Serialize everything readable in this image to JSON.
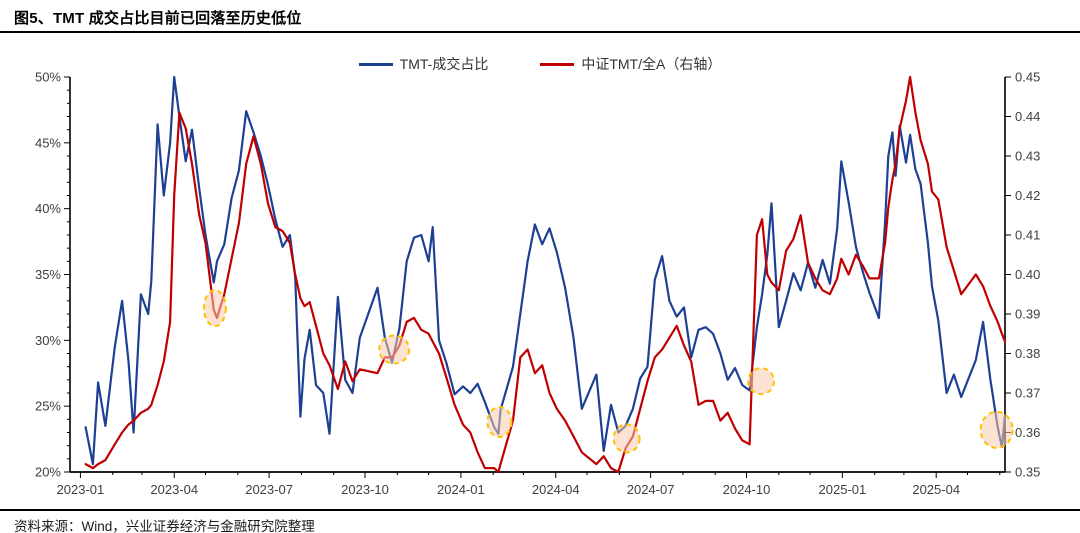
{
  "header": {
    "title": "图5、TMT 成交占比目前已回落至历史低位"
  },
  "footer": {
    "source": "资料来源：Wind，兴业证券经济与金融研究院整理"
  },
  "chart_data": {
    "type": "line",
    "title": "图5、TMT 成交占比目前已回落至历史低位",
    "x_range": [
      "2022-12-22",
      "2025-06-06"
    ],
    "left_axis": {
      "min": 20,
      "max": 50,
      "tick_values": [
        20,
        25,
        30,
        35,
        40,
        45,
        50
      ],
      "labels": [
        "20%",
        "25%",
        "30%",
        "35%",
        "40%",
        "45%",
        "50%"
      ]
    },
    "right_axis": {
      "min": 0.35,
      "max": 0.45,
      "tick_values": [
        0.35,
        0.36,
        0.37,
        0.38,
        0.39,
        0.4,
        0.41,
        0.42,
        0.43,
        0.44,
        0.45
      ],
      "labels": [
        "0.35",
        "0.36",
        "0.37",
        "0.38",
        "0.39",
        "0.40",
        "0.41",
        "0.42",
        "0.43",
        "0.44",
        "0.45"
      ]
    },
    "x_axis": {
      "ticks": [
        {
          "label": "2023-01",
          "date": "2023-01-01"
        },
        {
          "label": "2023-04",
          "date": "2023-04-01"
        },
        {
          "label": "2023-07",
          "date": "2023-07-01"
        },
        {
          "label": "2023-10",
          "date": "2023-10-01"
        },
        {
          "label": "2024-01",
          "date": "2024-01-01"
        },
        {
          "label": "2024-04",
          "date": "2024-04-01"
        },
        {
          "label": "2024-07",
          "date": "2024-07-01"
        },
        {
          "label": "2024-10",
          "date": "2024-10-01"
        },
        {
          "label": "2025-01",
          "date": "2025-01-01"
        },
        {
          "label": "2025-04",
          "date": "2025-04-01"
        }
      ]
    },
    "x": [
      "2023-01-06",
      "2023-01-13",
      "2023-01-18",
      "2023-01-25",
      "2023-02-03",
      "2023-02-10",
      "2023-02-16",
      "2023-02-21",
      "2023-02-28",
      "2023-03-07",
      "2023-03-10",
      "2023-03-16",
      "2023-03-22",
      "2023-03-28",
      "2023-04-01",
      "2023-04-06",
      "2023-04-12",
      "2023-04-18",
      "2023-04-25",
      "2023-05-01",
      "2023-05-09",
      "2023-05-12",
      "2023-05-19",
      "2023-05-26",
      "2023-06-02",
      "2023-06-09",
      "2023-06-16",
      "2023-06-23",
      "2023-06-30",
      "2023-07-07",
      "2023-07-14",
      "2023-07-21",
      "2023-07-26",
      "2023-07-31",
      "2023-08-04",
      "2023-08-09",
      "2023-08-15",
      "2023-08-22",
      "2023-08-28",
      "2023-09-05",
      "2023-09-12",
      "2023-09-19",
      "2023-09-26",
      "2023-10-13",
      "2023-10-20",
      "2023-10-27",
      "2023-11-03",
      "2023-11-10",
      "2023-11-17",
      "2023-11-24",
      "2023-12-01",
      "2023-12-05",
      "2023-12-11",
      "2023-12-18",
      "2023-12-26",
      "2024-01-03",
      "2024-01-10",
      "2024-01-17",
      "2024-01-24",
      "2024-02-02",
      "2024-02-06",
      "2024-02-08",
      "2024-02-20",
      "2024-02-27",
      "2024-03-05",
      "2024-03-12",
      "2024-03-19",
      "2024-03-26",
      "2024-04-02",
      "2024-04-10",
      "2024-04-18",
      "2024-04-26",
      "2024-05-10",
      "2024-05-17",
      "2024-05-24",
      "2024-05-31",
      "2024-06-07",
      "2024-06-14",
      "2024-06-21",
      "2024-06-28",
      "2024-07-05",
      "2024-07-12",
      "2024-07-19",
      "2024-07-26",
      "2024-08-02",
      "2024-08-09",
      "2024-08-16",
      "2024-08-23",
      "2024-08-30",
      "2024-09-06",
      "2024-09-13",
      "2024-09-20",
      "2024-09-27",
      "2024-10-04",
      "2024-10-11",
      "2024-10-16",
      "2024-10-21",
      "2024-10-25",
      "2024-11-01",
      "2024-11-08",
      "2024-11-15",
      "2024-11-22",
      "2024-11-29",
      "2024-12-06",
      "2024-12-13",
      "2024-12-20",
      "2024-12-27",
      "2024-12-31",
      "2025-01-07",
      "2025-01-14",
      "2025-01-21",
      "2025-01-27",
      "2025-02-05",
      "2025-02-11",
      "2025-02-14",
      "2025-02-18",
      "2025-02-21",
      "2025-02-25",
      "2025-03-03",
      "2025-03-07",
      "2025-03-12",
      "2025-03-17",
      "2025-03-24",
      "2025-03-28",
      "2025-04-03",
      "2025-04-11",
      "2025-04-18",
      "2025-04-25",
      "2025-05-09",
      "2025-05-16",
      "2025-05-23",
      "2025-05-30",
      "2025-06-03",
      "2025-06-06"
    ],
    "series": [
      {
        "name": "TMT-成交占比",
        "axis": "left",
        "color": "#1e4094",
        "values": [
          23.4,
          20.6,
          26.8,
          23.5,
          29.5,
          33.0,
          28.5,
          23.0,
          33.5,
          32.0,
          34.5,
          46.4,
          41.0,
          45.0,
          50.0,
          47.0,
          43.6,
          46.0,
          41.5,
          38.0,
          34.4,
          36.0,
          37.3,
          40.8,
          42.9,
          47.4,
          45.8,
          44.0,
          41.8,
          39.2,
          37.1,
          38.0,
          34.8,
          24.2,
          28.6,
          30.8,
          26.6,
          26.0,
          22.9,
          33.3,
          27.0,
          26.0,
          30.2,
          34.0,
          30.2,
          28.3,
          30.9,
          36.0,
          37.8,
          38.0,
          36.0,
          38.6,
          30.0,
          28.3,
          25.9,
          26.5,
          26.0,
          26.7,
          25.3,
          23.4,
          22.9,
          24.7,
          28.0,
          32.0,
          36.0,
          38.8,
          37.3,
          38.5,
          36.7,
          34.0,
          30.2,
          24.8,
          27.4,
          21.6,
          25.1,
          23.0,
          23.5,
          24.8,
          27.1,
          28.0,
          34.6,
          36.4,
          33.0,
          31.8,
          32.5,
          28.7,
          30.8,
          31.0,
          30.5,
          29.0,
          27.0,
          27.9,
          26.6,
          26.2,
          31.0,
          33.5,
          36.5,
          40.4,
          31.0,
          33.0,
          35.1,
          33.8,
          35.9,
          34.0,
          36.1,
          34.3,
          38.5,
          43.6,
          40.5,
          37.1,
          35.1,
          33.6,
          31.7,
          39.0,
          44.0,
          45.8,
          42.5,
          46.3,
          43.5,
          45.6,
          43.0,
          41.9,
          37.4,
          34.1,
          31.5,
          26.0,
          27.4,
          25.7,
          28.5,
          31.4,
          27.0,
          23.4,
          21.9,
          24.3
        ]
      },
      {
        "name": "中证TMT/全A（右轴）",
        "axis": "right",
        "color": "#c00000",
        "values": [
          0.352,
          0.351,
          0.352,
          0.353,
          0.357,
          0.36,
          0.362,
          0.363,
          0.365,
          0.366,
          0.367,
          0.372,
          0.378,
          0.388,
          0.42,
          0.441,
          0.437,
          0.428,
          0.415,
          0.408,
          0.391,
          0.389,
          0.395,
          0.404,
          0.413,
          0.428,
          0.435,
          0.428,
          0.418,
          0.412,
          0.411,
          0.408,
          0.4,
          0.394,
          0.392,
          0.393,
          0.387,
          0.38,
          0.377,
          0.371,
          0.378,
          0.373,
          0.376,
          0.375,
          0.379,
          0.379,
          0.382,
          0.388,
          0.389,
          0.386,
          0.385,
          0.383,
          0.38,
          0.374,
          0.367,
          0.362,
          0.36,
          0.355,
          0.351,
          0.351,
          0.35,
          0.352,
          0.363,
          0.379,
          0.381,
          0.375,
          0.377,
          0.37,
          0.366,
          0.363,
          0.359,
          0.355,
          0.352,
          0.354,
          0.351,
          0.35,
          0.356,
          0.359,
          0.366,
          0.373,
          0.379,
          0.381,
          0.384,
          0.387,
          0.382,
          0.378,
          0.367,
          0.368,
          0.368,
          0.363,
          0.365,
          0.361,
          0.358,
          0.357,
          0.41,
          0.414,
          0.4,
          0.398,
          0.396,
          0.406,
          0.409,
          0.415,
          0.403,
          0.399,
          0.396,
          0.395,
          0.399,
          0.404,
          0.4,
          0.405,
          0.402,
          0.399,
          0.399,
          0.408,
          0.417,
          0.424,
          0.428,
          0.437,
          0.444,
          0.45,
          0.441,
          0.434,
          0.428,
          0.421,
          0.419,
          0.407,
          0.401,
          0.395,
          0.4,
          0.397,
          0.392,
          0.388,
          0.385,
          0.383
        ]
      }
    ],
    "highlights": [
      {
        "date": "2023-05-10",
        "axis": "right",
        "value": 0.3915,
        "rx": 11,
        "ry": 18
      },
      {
        "date": "2023-10-29",
        "axis": "right",
        "value": 0.381,
        "rx": 15,
        "ry": 14
      },
      {
        "date": "2024-02-07",
        "axis": "left",
        "value": 23.8,
        "rx": 12,
        "ry": 15
      },
      {
        "date": "2024-06-08",
        "axis": "right",
        "value": 0.3585,
        "rx": 13,
        "ry": 14
      },
      {
        "date": "2024-10-15",
        "axis": "left",
        "value": 26.9,
        "rx": 13,
        "ry": 13
      },
      {
        "date": "2025-05-29",
        "axis": "left",
        "value": 23.2,
        "rx": 16,
        "ry": 18
      }
    ],
    "legend_position": "top-center",
    "grid": false
  }
}
